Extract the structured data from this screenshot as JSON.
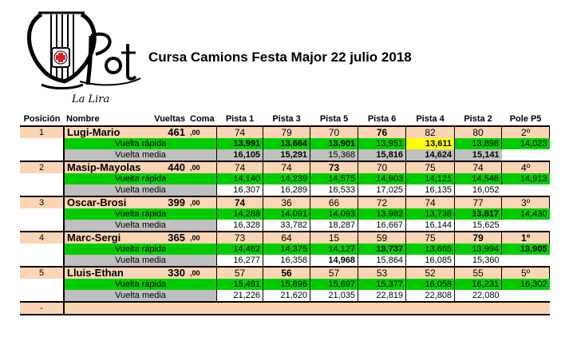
{
  "logo_text": "La Lira",
  "title": "Cursa Camions Festa Major  22 julio 2018",
  "headers": [
    "Posición",
    "Nombre",
    "Vueltas",
    "Coma",
    "Pista 1",
    "Pista 3",
    "Pista 5",
    "Pista 6",
    "Pista 4",
    "Pista 2",
    "Pole P5"
  ],
  "label_fast": "Vuelta rápida",
  "label_avg": "Vuelta media",
  "rows": [
    {
      "pos": "1",
      "name": "Lugi-Mario",
      "laps": "461",
      "coma": ",00",
      "pistas": [
        "74",
        "79",
        "70",
        "76",
        "82",
        "80"
      ],
      "pole": "2º",
      "fast": [
        "13,991",
        "13,664",
        "13,901",
        "13,951",
        "13,611",
        "13,898",
        "14,023"
      ],
      "avg": [
        "16,105",
        "15,291",
        "15,368",
        "15,816",
        "14,624",
        "15,141"
      ]
    },
    {
      "pos": "2",
      "name": "Masip-Mayolas",
      "laps": "440",
      "coma": ",00",
      "pistas": [
        "74",
        "74",
        "73",
        "70",
        "75",
        "74"
      ],
      "pole": "4º",
      "fast": [
        "14,140",
        "14,239",
        "14,575",
        "14,903",
        "14,121",
        "14,548",
        "14,913"
      ],
      "avg": [
        "16,307",
        "16,289",
        "16,533",
        "17,025",
        "16,135",
        "16,052"
      ]
    },
    {
      "pos": "3",
      "name": "Oscar-Brosi",
      "laps": "399",
      "coma": ",00",
      "pistas": [
        "74",
        "36",
        "66",
        "72",
        "74",
        "77"
      ],
      "pole": "3º",
      "fast": [
        "14,288",
        "14,091",
        "14,093",
        "13,982",
        "13,738",
        "13,817",
        "14,430"
      ],
      "avg": [
        "16,328",
        "33,782",
        "18,287",
        "16,667",
        "16,144",
        "15,625"
      ]
    },
    {
      "pos": "4",
      "name": "Marc-Sergi",
      "laps": "365",
      "coma": ",00",
      "pistas": [
        "73",
        "64",
        "15",
        "59",
        "75",
        "79"
      ],
      "pole": "1º",
      "fast": [
        "14,462",
        "14,375",
        "14,127",
        "13,737",
        "13,665",
        "13,994",
        "13,905"
      ],
      "avg": [
        "16,277",
        "16,358",
        "14,968",
        "15,864",
        "16,085",
        "15,360"
      ]
    },
    {
      "pos": "5",
      "name": "Lluis-Ethan",
      "laps": "330",
      "coma": ",00",
      "pistas": [
        "57",
        "56",
        "57",
        "53",
        "52",
        "55"
      ],
      "pole": "5º",
      "fast": [
        "15,491",
        "15,896",
        "15,697",
        "15,377",
        "16,058",
        "16,231",
        "16,302"
      ],
      "avg": [
        "21,226",
        "21,620",
        "21,035",
        "22,819",
        "22,808",
        "22,080"
      ]
    }
  ],
  "empty_row_pos": "-"
}
